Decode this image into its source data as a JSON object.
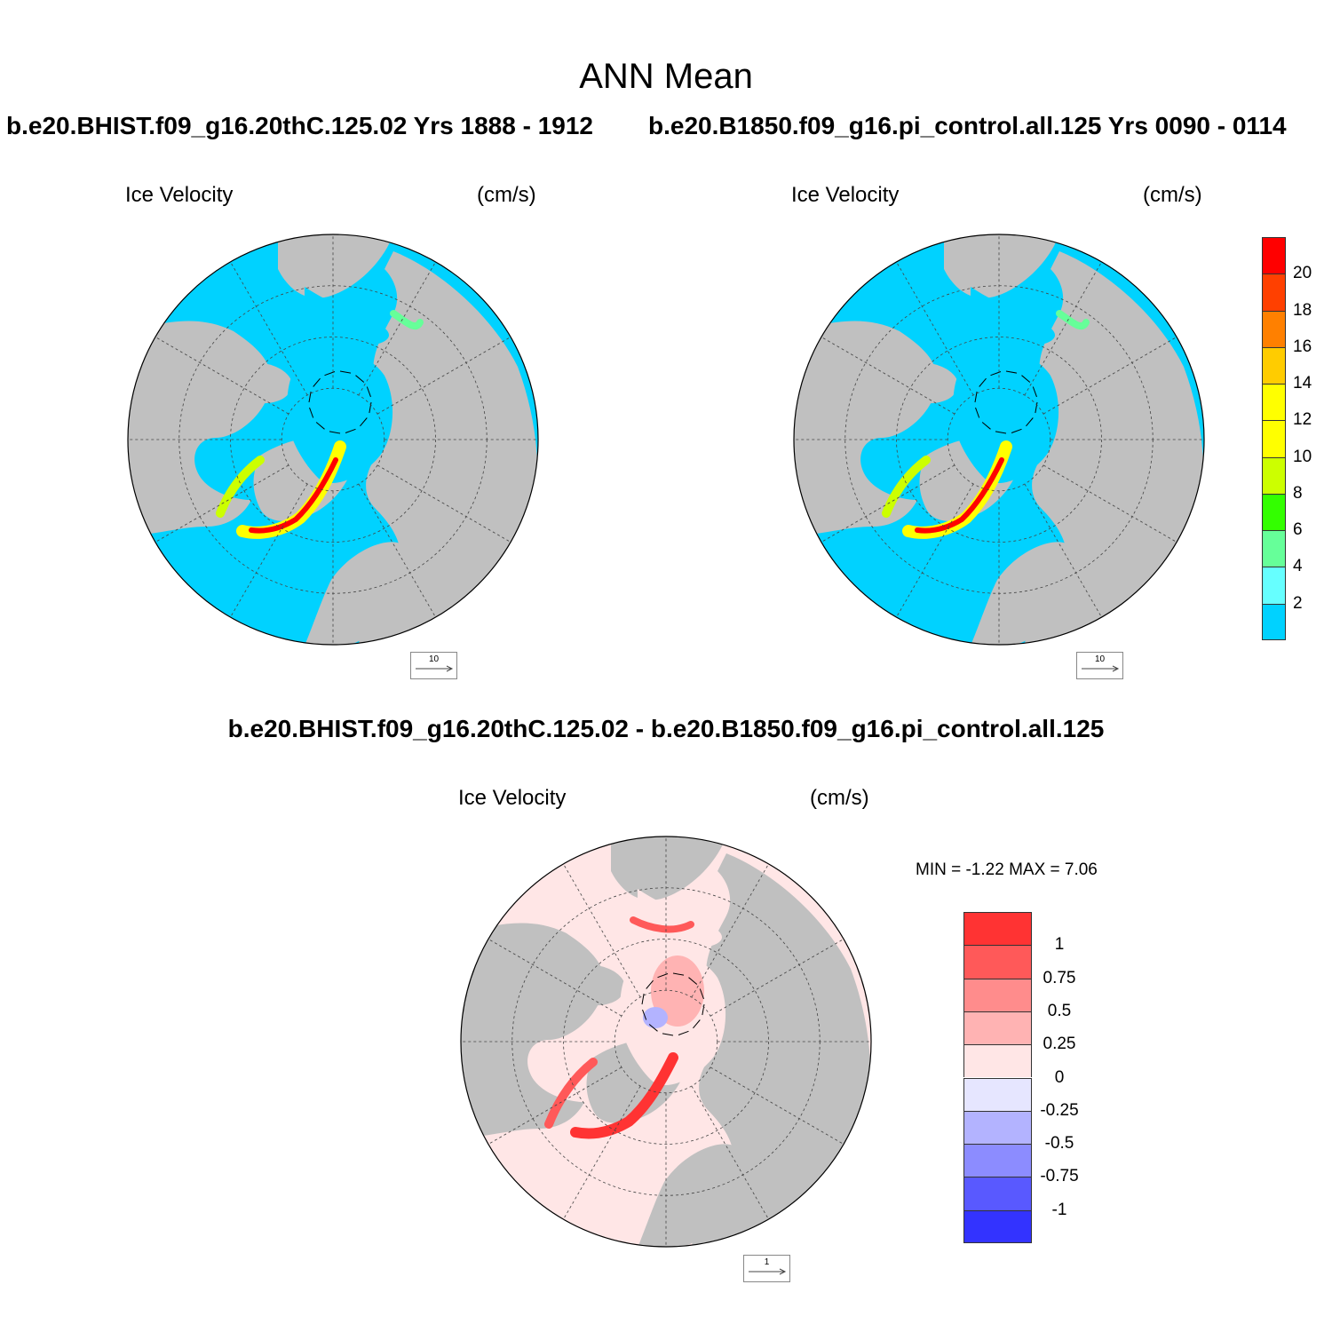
{
  "title": "ANN Mean",
  "panels": [
    {
      "case": "b.e20.BHIST.f09_g16.20thC.125.02  Yrs 1888 - 1912",
      "field": "Ice Velocity",
      "units": "(cm/s)",
      "vector_ref": "10"
    },
    {
      "case": "b.e20.B1850.f09_g16.pi_control.all.125  Yrs 0090 - 0114",
      "field": "Ice Velocity",
      "units": "(cm/s)",
      "vector_ref": "10"
    }
  ],
  "diff": {
    "title": "b.e20.BHIST.f09_g16.20thC.125.02 - b.e20.B1850.f09_g16.pi_control.all.125",
    "field": "Ice Velocity",
    "units": "(cm/s)",
    "minmax": "MIN =  -1.22 MAX =   7.06",
    "vector_ref": "1"
  },
  "colorbar_main": {
    "labels": [
      "2",
      "4",
      "6",
      "8",
      "10",
      "12",
      "14",
      "16",
      "18",
      "20"
    ],
    "colors": [
      "#00d2ff",
      "#66ffff",
      "#66ff99",
      "#33ff00",
      "#ccff00",
      "#ffff00",
      "#ffff00",
      "#ffcc00",
      "#ff8000",
      "#ff4000",
      "#ff0000"
    ]
  },
  "colorbar_diff": {
    "labels": [
      "1",
      "0.75",
      "0.5",
      "0.25",
      "0",
      "-0.25",
      "-0.5",
      "-0.75",
      "-1"
    ],
    "colors": [
      "#ff3333",
      "#ff5959",
      "#ff8c8c",
      "#ffb3b3",
      "#ffe6e6",
      "#e6e6ff",
      "#b3b3ff",
      "#8c8cff",
      "#5959ff",
      "#3333ff"
    ]
  },
  "colors": {
    "ocean": "#00d2ff",
    "land": "#c0c0c0",
    "diff_ocean": "#ffe6e6"
  }
}
